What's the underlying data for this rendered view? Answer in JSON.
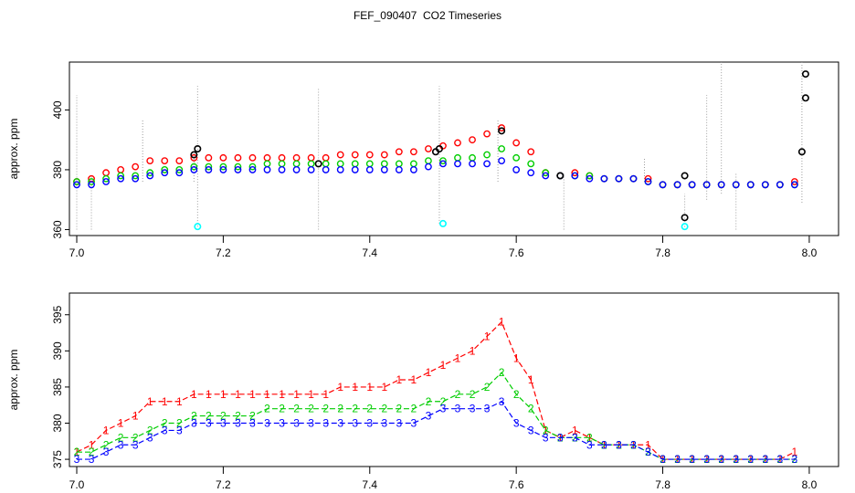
{
  "title": "FEF_090407  CO2 Timeseries",
  "colors": {
    "series1": "#ff0000",
    "series2": "#00cd00",
    "series3": "#0000ff",
    "marker_black": "#000000",
    "marker_cyan": "#00ffff",
    "guide": "#9e9e9e"
  },
  "chart_data": [
    {
      "type": "scatter",
      "panel": "top",
      "title": "FEF_090407  CO2 Timeseries",
      "xlabel": "",
      "ylabel": "approx. ppm",
      "xlim": [
        6.99,
        8.04
      ],
      "ylim": [
        358,
        416
      ],
      "xticks": [
        7.0,
        7.2,
        7.4,
        7.6,
        7.8,
        8.0
      ],
      "xtick_labels": [
        "7.0",
        "7.2",
        "7.4",
        "7.6",
        "7.8",
        "8.0"
      ],
      "yticks": [
        360,
        380,
        400
      ],
      "ytick_labels": [
        "360",
        "380",
        "400"
      ],
      "x": [
        7.0,
        7.02,
        7.04,
        7.06,
        7.08,
        7.1,
        7.12,
        7.14,
        7.16,
        7.18,
        7.2,
        7.22,
        7.24,
        7.26,
        7.28,
        7.3,
        7.32,
        7.34,
        7.36,
        7.38,
        7.4,
        7.42,
        7.44,
        7.46,
        7.48,
        7.5,
        7.52,
        7.54,
        7.56,
        7.58,
        7.6,
        7.62,
        7.64,
        7.66,
        7.68,
        7.7,
        7.72,
        7.74,
        7.76,
        7.78,
        7.8,
        7.82,
        7.84,
        7.86,
        7.88,
        7.9,
        7.92,
        7.94,
        7.96,
        7.98
      ],
      "series": [
        {
          "name": "1",
          "values": [
            376,
            377,
            379,
            380,
            381,
            383,
            383,
            383,
            384,
            384,
            384,
            384,
            384,
            384,
            384,
            384,
            384,
            384,
            385,
            385,
            385,
            385,
            386,
            386,
            387,
            388,
            389,
            390,
            392,
            394,
            389,
            386,
            379,
            378,
            379,
            378,
            377,
            377,
            377,
            377,
            375,
            375,
            375,
            375,
            375,
            375,
            375,
            375,
            375,
            376
          ]
        },
        {
          "name": "2",
          "values": [
            376,
            376,
            377,
            378,
            378,
            379,
            380,
            380,
            381,
            381,
            381,
            381,
            381,
            382,
            382,
            382,
            382,
            382,
            382,
            382,
            382,
            382,
            382,
            382,
            383,
            383,
            384,
            384,
            385,
            387,
            384,
            382,
            379,
            378,
            378,
            378,
            377,
            377,
            377,
            376,
            375,
            375,
            375,
            375,
            375,
            375,
            375,
            375,
            375,
            375
          ]
        },
        {
          "name": "3",
          "values": [
            375,
            375,
            376,
            377,
            377,
            378,
            379,
            379,
            380,
            380,
            380,
            380,
            380,
            380,
            380,
            380,
            380,
            380,
            380,
            380,
            380,
            380,
            380,
            380,
            381,
            382,
            382,
            382,
            382,
            383,
            380,
            379,
            378,
            378,
            378,
            377,
            377,
            377,
            377,
            376,
            375,
            375,
            375,
            375,
            375,
            375,
            375,
            375,
            375,
            375
          ]
        }
      ],
      "black_points": [
        [
          7.16,
          385
        ],
        [
          7.165,
          387
        ],
        [
          7.33,
          382
        ],
        [
          7.49,
          386
        ],
        [
          7.495,
          387
        ],
        [
          7.58,
          393
        ],
        [
          7.66,
          378
        ],
        [
          7.83,
          378
        ],
        [
          7.83,
          364
        ],
        [
          7.99,
          386
        ],
        [
          7.995,
          404
        ],
        [
          7.995,
          412
        ]
      ],
      "cyan_points": [
        [
          7.165,
          361
        ],
        [
          7.5,
          362
        ],
        [
          7.83,
          361
        ]
      ],
      "guide_segments": [
        [
          7.0,
          360,
          7.0,
          405
        ],
        [
          7.02,
          360,
          7.02,
          378
        ],
        [
          7.09,
          376,
          7.09,
          397
        ],
        [
          7.16,
          376,
          7.16,
          386
        ],
        [
          7.165,
          361,
          7.165,
          408
        ],
        [
          7.33,
          360,
          7.33,
          407
        ],
        [
          7.495,
          362,
          7.495,
          408
        ],
        [
          7.575,
          376,
          7.575,
          397
        ],
        [
          7.665,
          360,
          7.665,
          379
        ],
        [
          7.775,
          376,
          7.775,
          384
        ],
        [
          7.83,
          360,
          7.83,
          372
        ],
        [
          7.86,
          370,
          7.86,
          405
        ],
        [
          7.88,
          372,
          7.88,
          416
        ],
        [
          7.9,
          360,
          7.9,
          379
        ],
        [
          7.99,
          369,
          7.99,
          416
        ]
      ]
    },
    {
      "type": "line",
      "panel": "bottom",
      "xlabel": "",
      "ylabel": "approx. ppm",
      "xlim": [
        6.99,
        8.04
      ],
      "ylim": [
        374,
        398
      ],
      "xticks": [
        7.0,
        7.2,
        7.4,
        7.6,
        7.8,
        8.0
      ],
      "xtick_labels": [
        "7.0",
        "7.2",
        "7.4",
        "7.6",
        "7.8",
        "8.0"
      ],
      "yticks": [
        375,
        380,
        385,
        390,
        395
      ],
      "ytick_labels": [
        "375",
        "380",
        "385",
        "390",
        "395"
      ],
      "x": [
        7.0,
        7.02,
        7.04,
        7.06,
        7.08,
        7.1,
        7.12,
        7.14,
        7.16,
        7.18,
        7.2,
        7.22,
        7.24,
        7.26,
        7.28,
        7.3,
        7.32,
        7.34,
        7.36,
        7.38,
        7.4,
        7.42,
        7.44,
        7.46,
        7.48,
        7.5,
        7.52,
        7.54,
        7.56,
        7.58,
        7.6,
        7.62,
        7.64,
        7.66,
        7.68,
        7.7,
        7.72,
        7.74,
        7.76,
        7.78,
        7.8,
        7.82,
        7.84,
        7.86,
        7.88,
        7.9,
        7.92,
        7.94,
        7.96,
        7.98
      ],
      "series": [
        {
          "name": "1",
          "marker": "1",
          "values": [
            376,
            377,
            379,
            380,
            381,
            383,
            383,
            383,
            384,
            384,
            384,
            384,
            384,
            384,
            384,
            384,
            384,
            384,
            385,
            385,
            385,
            385,
            386,
            386,
            387,
            388,
            389,
            390,
            392,
            394,
            389,
            386,
            379,
            378,
            379,
            378,
            377,
            377,
            377,
            377,
            375,
            375,
            375,
            375,
            375,
            375,
            375,
            375,
            375,
            376
          ]
        },
        {
          "name": "2",
          "marker": "2",
          "values": [
            376,
            376,
            377,
            378,
            378,
            379,
            380,
            380,
            381,
            381,
            381,
            381,
            381,
            382,
            382,
            382,
            382,
            382,
            382,
            382,
            382,
            382,
            382,
            382,
            383,
            383,
            384,
            384,
            385,
            387,
            384,
            382,
            379,
            378,
            378,
            378,
            377,
            377,
            377,
            376,
            375,
            375,
            375,
            375,
            375,
            375,
            375,
            375,
            375,
            375
          ]
        },
        {
          "name": "3",
          "marker": "3",
          "values": [
            375,
            375,
            376,
            377,
            377,
            378,
            379,
            379,
            380,
            380,
            380,
            380,
            380,
            380,
            380,
            380,
            380,
            380,
            380,
            380,
            380,
            380,
            380,
            380,
            381,
            382,
            382,
            382,
            382,
            383,
            380,
            379,
            378,
            378,
            378,
            377,
            377,
            377,
            377,
            376,
            375,
            375,
            375,
            375,
            375,
            375,
            375,
            375,
            375,
            375
          ]
        }
      ]
    }
  ]
}
